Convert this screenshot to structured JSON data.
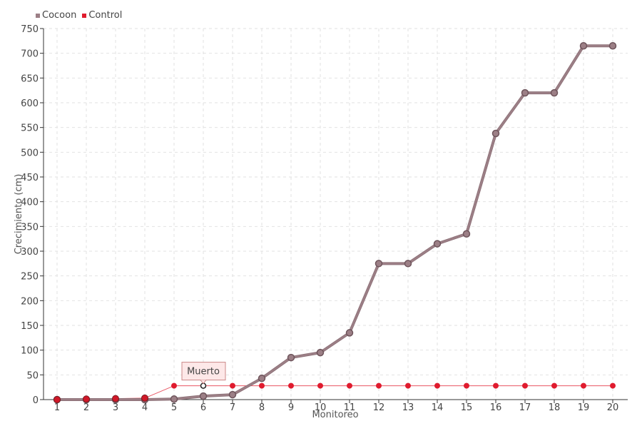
{
  "chart_data": {
    "type": "line",
    "x": [
      1,
      2,
      3,
      4,
      5,
      6,
      7,
      8,
      9,
      10,
      11,
      12,
      13,
      14,
      15,
      16,
      17,
      18,
      19,
      20
    ],
    "xlabel": "Monitoreo",
    "ylabel": "Crecimiento (cm)",
    "ylim": [
      0,
      750
    ],
    "yticks": [
      0,
      50,
      100,
      150,
      200,
      250,
      300,
      350,
      400,
      450,
      500,
      550,
      600,
      650,
      700,
      750
    ],
    "grid": true,
    "legend_position": "top-left",
    "series": [
      {
        "name": "Cocoon",
        "color": "#9c7f86",
        "values": [
          0,
          0,
          0,
          0,
          1,
          7,
          10,
          43,
          85,
          95,
          135,
          275,
          275,
          315,
          335,
          538,
          620,
          620,
          715,
          715
        ]
      },
      {
        "name": "Control",
        "color": "#e01b2e",
        "values": [
          0,
          1,
          2,
          3,
          28,
          28,
          28,
          28,
          28,
          28,
          28,
          28,
          28,
          28,
          28,
          28,
          28,
          28,
          28,
          28
        ]
      }
    ],
    "annotations": [
      {
        "text": "Muerto",
        "series": "Control",
        "x": 6
      }
    ]
  }
}
